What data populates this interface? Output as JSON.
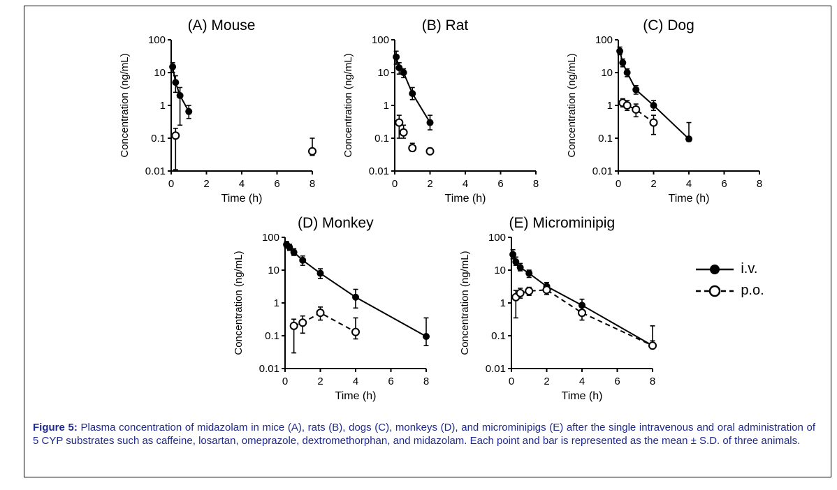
{
  "figure": {
    "caption_label": "Figure 5:",
    "caption_text": " Plasma concentration of midazolam in mice (A), rats (B), dogs (C), monkeys (D), and microminipigs (E) after the single intravenous and oral administration of 5 CYP substrates such as caffeine, losartan, omeprazole, dextromethorphan, and midazolam.  Each point and bar is represented as the mean ± S.D. of three animals.",
    "caption_color": "#1f2a8e"
  },
  "legend": {
    "position": "right of panel E",
    "items": [
      {
        "label": "i.v.",
        "marker": "filled-circle",
        "line": "solid",
        "color": "#000000"
      },
      {
        "label": "p.o.",
        "marker": "open-circle",
        "line": "dashed",
        "color": "#000000"
      }
    ]
  },
  "chart_data": [
    {
      "id": "A",
      "title": "(A) Mouse",
      "type": "line",
      "xlabel": "Time (h)",
      "ylabel": "Concentration (ng/mL)",
      "xlim": [
        0,
        8
      ],
      "xticks": [
        0,
        2,
        4,
        6,
        8
      ],
      "yscale": "log",
      "ylim": [
        0.01,
        100
      ],
      "yticks": [
        100,
        10,
        1,
        0.1,
        0.01
      ],
      "series": [
        {
          "name": "i.v.",
          "marker": "filled",
          "dash": false,
          "line": true,
          "x": [
            0.083,
            0.25,
            0.5,
            1
          ],
          "y": [
            15,
            5,
            2,
            0.65
          ],
          "err_lo": [
            10,
            2.5,
            0.25,
            0.4
          ],
          "err_hi": [
            20,
            8,
            3.5,
            1.0
          ]
        },
        {
          "name": "p.o.",
          "marker": "open",
          "dash": true,
          "line": false,
          "x": [
            0.25,
            8
          ],
          "y": [
            0.12,
            0.04
          ],
          "err_lo": [
            0.011,
            0.03
          ],
          "err_hi": [
            0.2,
            0.1
          ]
        }
      ]
    },
    {
      "id": "B",
      "title": "(B) Rat",
      "type": "line",
      "xlabel": "Time (h)",
      "ylabel": "Concentration (ng/mL)",
      "xlim": [
        0,
        8
      ],
      "xticks": [
        0,
        2,
        4,
        6,
        8
      ],
      "yscale": "log",
      "ylim": [
        0.01,
        100
      ],
      "yticks": [
        100,
        10,
        1,
        0.1,
        0.01
      ],
      "series": [
        {
          "name": "i.v.",
          "marker": "filled",
          "dash": false,
          "line": true,
          "x": [
            0.083,
            0.25,
            0.5,
            1,
            2
          ],
          "y": [
            30,
            14,
            10,
            2.3,
            0.3
          ],
          "err_lo": [
            18,
            9,
            7,
            1.5,
            0.18
          ],
          "err_hi": [
            45,
            20,
            13,
            3.5,
            0.5
          ]
        },
        {
          "name": "p.o.",
          "marker": "open",
          "dash": true,
          "line": false,
          "x": [
            0.25,
            0.5,
            1,
            2
          ],
          "y": [
            0.3,
            0.15,
            0.05,
            0.04
          ],
          "err_lo": [
            0.1,
            0.1,
            0.04,
            0.035
          ],
          "err_hi": [
            0.5,
            0.25,
            0.07,
            0.05
          ]
        }
      ]
    },
    {
      "id": "C",
      "title": "(C) Dog",
      "type": "line",
      "xlabel": "Time (h)",
      "ylabel": "Concentration (ng/mL)",
      "xlim": [
        0,
        8
      ],
      "xticks": [
        0,
        2,
        4,
        6,
        8
      ],
      "yscale": "log",
      "ylim": [
        0.01,
        100
      ],
      "yticks": [
        100,
        10,
        1,
        0.1,
        0.01
      ],
      "series": [
        {
          "name": "i.v.",
          "marker": "filled",
          "dash": false,
          "line": true,
          "x": [
            0.083,
            0.25,
            0.5,
            1,
            2,
            4
          ],
          "y": [
            45,
            20,
            10,
            3,
            1,
            0.095
          ],
          "err_lo": [
            35,
            15,
            7.5,
            2.2,
            0.7,
            0.08
          ],
          "err_hi": [
            60,
            26,
            13,
            4,
            1.4,
            0.3
          ]
        },
        {
          "name": "p.o.",
          "marker": "open",
          "dash": true,
          "line": true,
          "x": [
            0.25,
            0.5,
            1,
            2
          ],
          "y": [
            1.2,
            1.0,
            0.75,
            0.3
          ],
          "err_lo": [
            0.9,
            0.7,
            0.45,
            0.13
          ],
          "err_hi": [
            1.6,
            1.4,
            1.1,
            0.5
          ]
        }
      ]
    },
    {
      "id": "D",
      "title": "(D) Monkey",
      "type": "line",
      "xlabel": "Time (h)",
      "ylabel": "Concentration (ng/mL)",
      "xlim": [
        0,
        8
      ],
      "xticks": [
        0,
        2,
        4,
        6,
        8
      ],
      "yscale": "log",
      "ylim": [
        0.01,
        100
      ],
      "yticks": [
        100,
        10,
        1,
        0.1,
        0.01
      ],
      "series": [
        {
          "name": "i.v.",
          "marker": "filled",
          "dash": false,
          "line": true,
          "x": [
            0.083,
            0.25,
            0.5,
            1,
            2,
            4,
            8
          ],
          "y": [
            60,
            50,
            35,
            20,
            8,
            1.5,
            0.095
          ],
          "err_lo": [
            48,
            40,
            28,
            14,
            5.5,
            0.7,
            0.05
          ],
          "err_hi": [
            75,
            62,
            45,
            27,
            11,
            2.6,
            0.35
          ]
        },
        {
          "name": "p.o.",
          "marker": "open",
          "dash": true,
          "line": true,
          "x": [
            0.5,
            1,
            2,
            4
          ],
          "y": [
            0.2,
            0.25,
            0.5,
            0.13
          ],
          "err_lo": [
            0.03,
            0.12,
            0.3,
            0.08
          ],
          "err_hi": [
            0.32,
            0.4,
            0.75,
            0.35
          ]
        }
      ]
    },
    {
      "id": "E",
      "title": "(E) Microminipig",
      "type": "line",
      "xlabel": "Time (h)",
      "ylabel": "Concentration (ng/mL)",
      "xlim": [
        0,
        8
      ],
      "xticks": [
        0,
        2,
        4,
        6,
        8
      ],
      "yscale": "log",
      "ylim": [
        0.01,
        100
      ],
      "yticks": [
        100,
        10,
        1,
        0.1,
        0.01
      ],
      "series": [
        {
          "name": "i.v.",
          "marker": "filled",
          "dash": false,
          "line": true,
          "x": [
            0.083,
            0.25,
            0.5,
            1,
            2,
            4,
            8
          ],
          "y": [
            30,
            18,
            12,
            8,
            3.2,
            0.85,
            0.05
          ],
          "err_lo": [
            22,
            14,
            9.5,
            6,
            2.2,
            0.4,
            0.04
          ],
          "err_hi": [
            42,
            25,
            16,
            10,
            4.2,
            1.3,
            0.07
          ]
        },
        {
          "name": "p.o.",
          "marker": "open",
          "dash": true,
          "line": true,
          "x": [
            0.25,
            0.5,
            1,
            2,
            4,
            8
          ],
          "y": [
            1.5,
            2.0,
            2.3,
            2.5,
            0.5,
            0.05
          ],
          "err_lo": [
            0.35,
            1.4,
            1.7,
            1.8,
            0.3,
            0.04
          ],
          "err_hi": [
            2.4,
            2.8,
            3.0,
            3.3,
            0.8,
            0.2
          ]
        }
      ]
    }
  ]
}
